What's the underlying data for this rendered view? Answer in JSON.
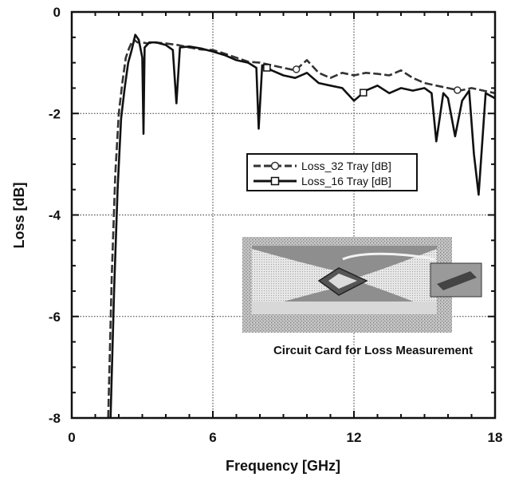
{
  "chart_data": {
    "type": "line",
    "title": "",
    "xlabel": "Frequency [GHz]",
    "ylabel": "Loss [dB]",
    "xlim": [
      0,
      18
    ],
    "ylim": [
      -8,
      0
    ],
    "xticks": [
      0,
      6,
      12,
      18
    ],
    "yticks": [
      0,
      -2,
      -4,
      -6,
      -8
    ],
    "xtick_labels": [
      "0",
      "6",
      "12",
      "18"
    ],
    "ytick_labels": [
      "0",
      "-2",
      "-4",
      "-6",
      "-8"
    ],
    "grid": true,
    "legend_position": "center-right",
    "series": [
      {
        "name": "Loss_32 Tray  [dB]",
        "marker": "circle",
        "dash": "dashed",
        "x": [
          1.55,
          1.7,
          1.85,
          2.0,
          2.15,
          2.3,
          2.45,
          2.55,
          2.65,
          2.8,
          3.0,
          3.2,
          3.5,
          4.0,
          4.5,
          5.0,
          5.5,
          6.0,
          6.5,
          7.0,
          7.5,
          8.0,
          8.5,
          9.0,
          9.5,
          10.0,
          10.5,
          11.0,
          11.5,
          12.0,
          12.5,
          13.0,
          13.5,
          14.0,
          14.5,
          15.0,
          15.5,
          16.0,
          16.5,
          17.0,
          17.5,
          18.0
        ],
        "y": [
          -8.0,
          -5.2,
          -3.2,
          -2.0,
          -1.4,
          -0.9,
          -0.7,
          -0.6,
          -0.55,
          -0.6,
          -0.6,
          -0.62,
          -0.6,
          -0.62,
          -0.65,
          -0.7,
          -0.74,
          -0.75,
          -0.82,
          -0.9,
          -0.98,
          -1.0,
          -1.05,
          -1.1,
          -1.15,
          -0.95,
          -1.2,
          -1.3,
          -1.2,
          -1.25,
          -1.2,
          -1.22,
          -1.25,
          -1.15,
          -1.3,
          -1.4,
          -1.45,
          -1.5,
          -1.55,
          -1.5,
          -1.55,
          -1.6
        ]
      },
      {
        "name": "Loss_16 Tray [dB]",
        "marker": "square",
        "dash": "solid",
        "x": [
          1.65,
          1.8,
          1.95,
          2.1,
          2.25,
          2.4,
          2.55,
          2.7,
          2.85,
          3.0,
          3.05,
          3.1,
          3.3,
          3.6,
          4.0,
          4.3,
          4.45,
          4.6,
          5.0,
          5.5,
          6.0,
          6.5,
          7.0,
          7.5,
          7.85,
          7.95,
          8.1,
          8.5,
          9.0,
          9.5,
          10.0,
          10.5,
          11.0,
          11.5,
          12.0,
          12.5,
          13.0,
          13.5,
          14.0,
          14.5,
          15.0,
          15.3,
          15.5,
          15.8,
          16.0,
          16.3,
          16.6,
          16.9,
          17.1,
          17.3,
          17.6,
          18.0
        ],
        "y": [
          -8.0,
          -5.5,
          -3.5,
          -2.1,
          -1.5,
          -1.0,
          -0.75,
          -0.45,
          -0.55,
          -0.9,
          -2.4,
          -0.7,
          -0.6,
          -0.6,
          -0.65,
          -0.75,
          -1.8,
          -0.7,
          -0.68,
          -0.72,
          -0.78,
          -0.85,
          -0.95,
          -1.0,
          -1.1,
          -2.3,
          -1.05,
          -1.15,
          -1.25,
          -1.3,
          -1.2,
          -1.4,
          -1.45,
          -1.5,
          -1.75,
          -1.55,
          -1.45,
          -1.6,
          -1.5,
          -1.55,
          -1.5,
          -1.6,
          -2.55,
          -1.6,
          -1.7,
          -2.45,
          -1.75,
          -1.55,
          -2.8,
          -3.6,
          -1.6,
          -1.7
        ]
      }
    ],
    "inset_caption": "Circuit Card for Loss Measurement"
  }
}
